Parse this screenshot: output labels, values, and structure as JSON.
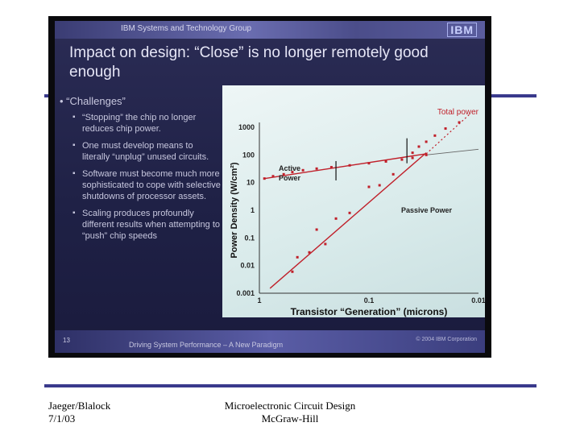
{
  "slide": {
    "group": "IBM Systems and Technology Group",
    "logo": "IBM",
    "title": "Impact on design: “Close” is no longer remotely good enough",
    "main_bullet": "“Challenges”",
    "sub_bullets": [
      "“Stopping” the chip no longer reduces chip power.",
      "One must develop means to literally “unplug” unused circuits.",
      "Software must become much more sophisticated to cope with selective shutdowns of processor assets.",
      "Scaling produces profoundly different results when attempting to “push” chip speeds"
    ],
    "page_number": "13",
    "footer": "Driving System Performance – A New Paradigm",
    "copyright": "© 2004 IBM Corporation"
  },
  "chart_data": {
    "type": "scatter",
    "ylabel": "Power Density (W/cm²)",
    "xlabel": "Transistor “Generation” (microns)",
    "x_scale": "log-reversed",
    "y_scale": "log",
    "xlim": [
      1,
      0.01
    ],
    "ylim": [
      0.001,
      1000
    ],
    "x_ticks": [
      "1",
      "0.1",
      "0.01"
    ],
    "y_ticks": [
      "1000",
      "100",
      "10",
      "1",
      "0.1",
      "0.01",
      "0.001"
    ],
    "grid": false,
    "annotations": [
      "Total power",
      "Active Power",
      "Passive Power"
    ],
    "series": [
      {
        "name": "Active Power",
        "color": "#c0202a",
        "x": [
          0.9,
          0.75,
          0.6,
          0.5,
          0.4,
          0.3,
          0.22,
          0.15,
          0.1,
          0.07,
          0.05,
          0.04,
          0.03
        ],
        "y": [
          14,
          17,
          20,
          24,
          28,
          32,
          36,
          42,
          50,
          58,
          68,
          78,
          100
        ]
      },
      {
        "name": "Passive Power",
        "color": "#c0202a",
        "x": [
          0.5,
          0.45,
          0.35,
          0.3,
          0.25,
          0.2,
          0.15,
          0.1,
          0.08,
          0.06
        ],
        "y": [
          0.006,
          0.02,
          0.03,
          0.2,
          0.06,
          0.5,
          0.8,
          7,
          8,
          20
        ]
      },
      {
        "name": "Total power",
        "color": "#c0202a",
        "x": [
          0.04,
          0.035,
          0.03,
          0.025,
          0.02,
          0.015
        ],
        "y": [
          120,
          200,
          300,
          500,
          900,
          1500
        ]
      }
    ]
  },
  "captions": {
    "left_line1": "Jaeger/Blalock",
    "left_line2": "7/1/03",
    "center_line1": "Microelectronic Circuit Design",
    "center_line2": "McGraw-Hill"
  }
}
